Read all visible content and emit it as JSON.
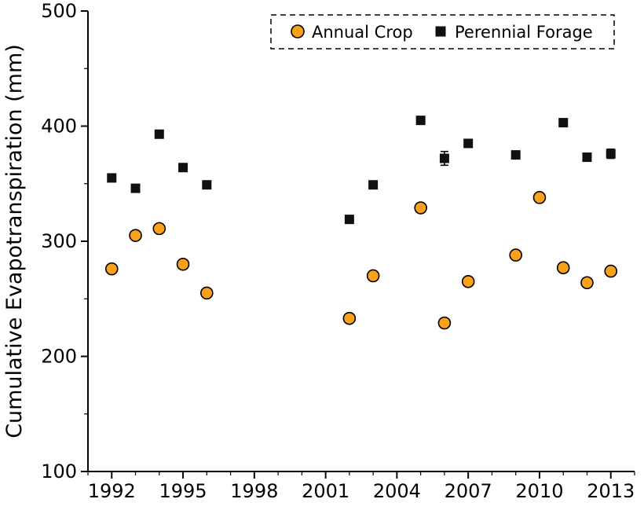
{
  "chart_data": {
    "type": "scatter",
    "title": "",
    "xlabel": "",
    "ylabel": "Cumulative Evapotranspiration (mm)",
    "xlim": [
      1991,
      2014
    ],
    "ylim": [
      100,
      500
    ],
    "x_ticks": [
      1992,
      1995,
      1998,
      2001,
      2004,
      2007,
      2010,
      2013
    ],
    "y_ticks": [
      100,
      200,
      300,
      400,
      500
    ],
    "x_minor_step": 1,
    "y_minor_step": 50,
    "grid": false,
    "legend_position": "top",
    "series": [
      {
        "name": "Annual Crop",
        "marker": "circle",
        "color": "#F9A11B",
        "edge_color": "#000000",
        "points": [
          {
            "x": 1992,
            "y": 276
          },
          {
            "x": 1993,
            "y": 305
          },
          {
            "x": 1994,
            "y": 311
          },
          {
            "x": 1995,
            "y": 280
          },
          {
            "x": 1996,
            "y": 255
          },
          {
            "x": 2002,
            "y": 233
          },
          {
            "x": 2003,
            "y": 270
          },
          {
            "x": 2005,
            "y": 329
          },
          {
            "x": 2006,
            "y": 229
          },
          {
            "x": 2007,
            "y": 265
          },
          {
            "x": 2009,
            "y": 288
          },
          {
            "x": 2010,
            "y": 338
          },
          {
            "x": 2011,
            "y": 277
          },
          {
            "x": 2012,
            "y": 264
          },
          {
            "x": 2013,
            "y": 274
          }
        ]
      },
      {
        "name": "Perennial Forage",
        "marker": "square",
        "color": "#111111",
        "edge_color": "#111111",
        "points": [
          {
            "x": 1992,
            "y": 355
          },
          {
            "x": 1993,
            "y": 346
          },
          {
            "x": 1994,
            "y": 393
          },
          {
            "x": 1995,
            "y": 364
          },
          {
            "x": 1996,
            "y": 349
          },
          {
            "x": 2002,
            "y": 319
          },
          {
            "x": 2003,
            "y": 349
          },
          {
            "x": 2005,
            "y": 405
          },
          {
            "x": 2006,
            "y": 372,
            "err": 6
          },
          {
            "x": 2007,
            "y": 385
          },
          {
            "x": 2009,
            "y": 375
          },
          {
            "x": 2011,
            "y": 403
          },
          {
            "x": 2012,
            "y": 373
          },
          {
            "x": 2013,
            "y": 376,
            "err": 4
          }
        ]
      }
    ]
  }
}
